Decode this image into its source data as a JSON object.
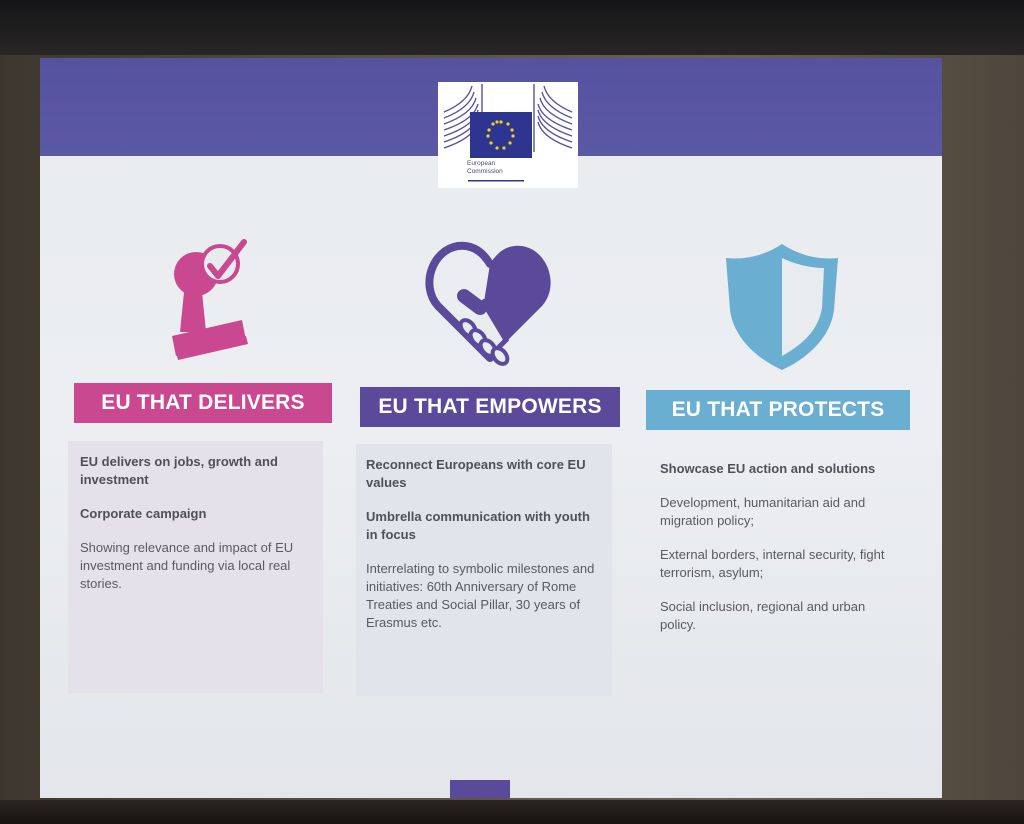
{
  "logo": {
    "icon": "european-commission-logo",
    "line1": "European",
    "line2": "Commission"
  },
  "columns": [
    {
      "title": "EU THAT DELIVERS",
      "color": "#c9488f",
      "icon": "stamp-check-icon",
      "items": [
        "EU delivers on jobs, growth and investment",
        "Corporate campaign",
        "Showing relevance and impact of EU investment and funding via local real stories."
      ]
    },
    {
      "title": "EU THAT EMPOWERS",
      "color": "#5b4a9a",
      "icon": "heart-handshake-icon",
      "items": [
        "Reconnect Europeans with core EU values",
        "Umbrella communication with youth in focus",
        "Interrelating to symbolic milestones and initiatives: 60th Anniversary of Rome Treaties and Social Pillar, 30 years of Erasmus etc."
      ]
    },
    {
      "title": "EU THAT PROTECTS",
      "color": "#6aaed2",
      "icon": "shield-icon",
      "items": [
        "Showcase EU action and solutions",
        "Development, humanitarian aid and migration policy;",
        "External borders, internal security, fight terrorism, asylum;",
        "Social inclusion, regional and urban policy."
      ]
    }
  ]
}
